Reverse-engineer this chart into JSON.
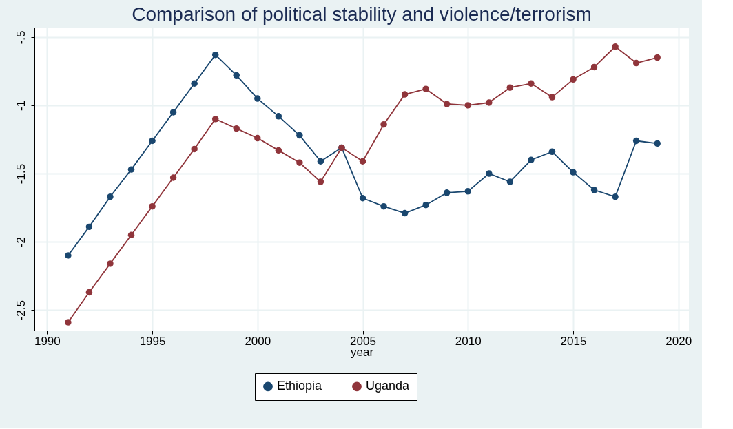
{
  "chart_data": {
    "type": "line",
    "title": "Comparison of political stability and violence/terrorism",
    "xlabel": "year",
    "x": [
      1991,
      1992,
      1993,
      1994,
      1995,
      1996,
      1997,
      1998,
      1999,
      2000,
      2001,
      2002,
      2003,
      2004,
      2005,
      2006,
      2007,
      2008,
      2009,
      2010,
      2011,
      2012,
      2013,
      2014,
      2015,
      2016,
      2017,
      2018,
      2019
    ],
    "series": [
      {
        "name": "Ethiopia",
        "color": "#1a476f",
        "values": [
          -2.1,
          -1.89,
          -1.67,
          -1.47,
          -1.26,
          -1.05,
          -0.84,
          -0.63,
          -0.78,
          -0.95,
          -1.08,
          -1.22,
          -1.41,
          -1.31,
          -1.68,
          -1.74,
          -1.79,
          -1.73,
          -1.64,
          -1.63,
          -1.5,
          -1.56,
          -1.4,
          -1.34,
          -1.49,
          -1.62,
          -1.67,
          -1.26,
          -1.28
        ]
      },
      {
        "name": "Uganda",
        "color": "#90353b",
        "values": [
          -2.59,
          -2.37,
          -2.16,
          -1.95,
          -1.74,
          -1.53,
          -1.32,
          -1.1,
          -1.17,
          -1.24,
          -1.33,
          -1.42,
          -1.56,
          -1.31,
          -1.41,
          -1.14,
          -0.92,
          -0.88,
          -0.99,
          -1.0,
          -0.98,
          -0.87,
          -0.84,
          -0.94,
          -0.81,
          -0.72,
          -0.57,
          -0.69,
          -0.65
        ]
      }
    ],
    "xlim": [
      1989.4,
      2020.5
    ],
    "xticks": [
      1990,
      1995,
      2000,
      2005,
      2010,
      2015,
      2020
    ],
    "ylim": [
      -2.65,
      -0.43
    ],
    "yticks": [
      {
        "value": -2.5,
        "label": "-2.5"
      },
      {
        "value": -2,
        "label": "-2"
      },
      {
        "value": -1.5,
        "label": "-1.5"
      },
      {
        "value": -1,
        "label": "-1"
      },
      {
        "value": -0.5,
        "label": "-.5"
      }
    ],
    "grid": true,
    "legend": "bottom",
    "marker": "circle",
    "line_style": "solid"
  }
}
